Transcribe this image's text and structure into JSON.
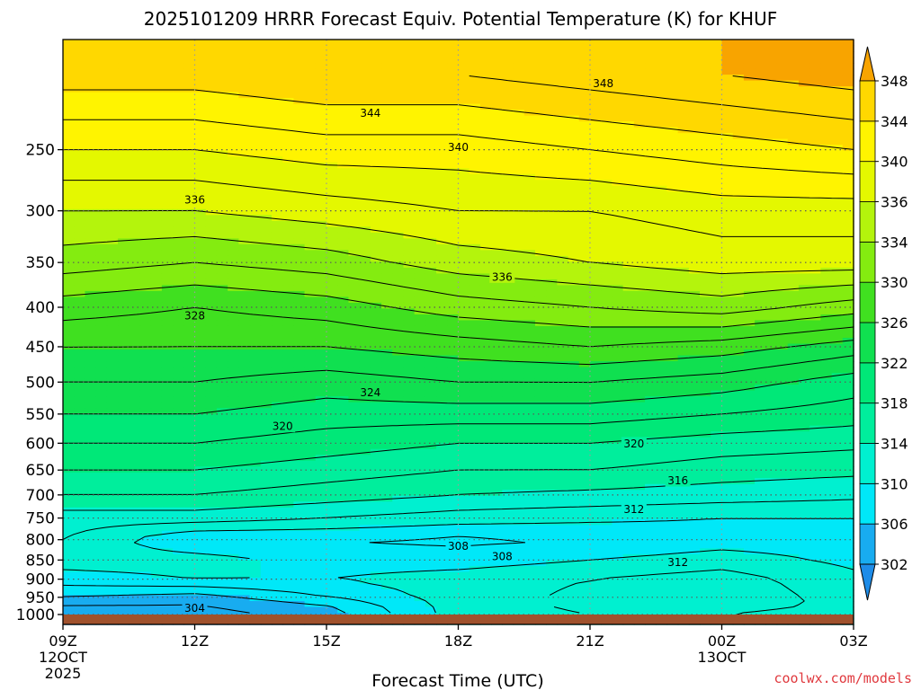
{
  "chart_data": {
    "type": "heatmap",
    "title": "2025101209 HRRR Forecast Equiv. Potential Temperature (K) for KHUF",
    "xlabel": "Forecast Time (UTC)",
    "ylabel": "",
    "x_ticks": [
      {
        "hour": 0,
        "label": "09Z",
        "sub1": "12OCT",
        "sub2": "2025"
      },
      {
        "hour": 3,
        "label": "12Z"
      },
      {
        "hour": 6,
        "label": "15Z"
      },
      {
        "hour": 9,
        "label": "18Z"
      },
      {
        "hour": 12,
        "label": "21Z"
      },
      {
        "hour": 15,
        "label": "00Z",
        "sub1": "13OCT"
      },
      {
        "hour": 18,
        "label": "03Z"
      }
    ],
    "xlim": [
      0,
      18
    ],
    "y_scale": "log",
    "ylim": [
      1030,
      180
    ],
    "y_ticks": [
      250,
      300,
      350,
      400,
      450,
      500,
      550,
      600,
      650,
      700,
      750,
      800,
      850,
      900,
      950,
      1000
    ],
    "grid": true,
    "surface_pressure": 1000,
    "colorbar": {
      "label_levels": [
        302,
        306,
        310,
        314,
        318,
        322,
        326,
        330,
        334,
        336,
        340,
        344,
        348
      ],
      "bands": [
        {
          "from": 298,
          "to": 302,
          "color": "#1e8ce8"
        },
        {
          "from": 302,
          "to": 306,
          "color": "#18acf0"
        },
        {
          "from": 306,
          "to": 310,
          "color": "#00e8f8"
        },
        {
          "from": 310,
          "to": 314,
          "color": "#00f0d0"
        },
        {
          "from": 314,
          "to": 318,
          "color": "#00ee9c"
        },
        {
          "from": 318,
          "to": 322,
          "color": "#00e878"
        },
        {
          "from": 322,
          "to": 326,
          "color": "#10e050"
        },
        {
          "from": 326,
          "to": 330,
          "color": "#40e020"
        },
        {
          "from": 330,
          "to": 334,
          "color": "#84ec10"
        },
        {
          "from": 334,
          "to": 336,
          "color": "#b4f40c"
        },
        {
          "from": 336,
          "to": 340,
          "color": "#e4f800"
        },
        {
          "from": 340,
          "to": 344,
          "color": "#fff400"
        },
        {
          "from": 344,
          "to": 348,
          "color": "#ffd800"
        },
        {
          "from": 348,
          "to": 352,
          "color": "#f8a400"
        }
      ]
    },
    "contour_interval": 2,
    "contour_labels": [
      {
        "value": 348,
        "hour": 12.3,
        "p": 205
      },
      {
        "value": 344,
        "hour": 7.0,
        "p": 224
      },
      {
        "value": 340,
        "hour": 9.0,
        "p": 248
      },
      {
        "value": 336,
        "hour": 3.0,
        "p": 290
      },
      {
        "value": 336,
        "hour": 10.0,
        "p": 365
      },
      {
        "value": 328,
        "hour": 3.0,
        "p": 410
      },
      {
        "value": 324,
        "hour": 7.0,
        "p": 515
      },
      {
        "value": 320,
        "hour": 5.0,
        "p": 570
      },
      {
        "value": 320,
        "hour": 13.0,
        "p": 600
      },
      {
        "value": 316,
        "hour": 14.0,
        "p": 670
      },
      {
        "value": 312,
        "hour": 13.0,
        "p": 730
      },
      {
        "value": 308,
        "hour": 9.0,
        "p": 815
      },
      {
        "value": 308,
        "hour": 10.0,
        "p": 840
      },
      {
        "value": 312,
        "hour": 14.0,
        "p": 855
      },
      {
        "value": 304,
        "hour": 3.0,
        "p": 980
      }
    ],
    "profiles": [
      {
        "hour": 0,
        "p": [
          1000,
          970,
          950,
          900,
          850,
          800,
          750,
          700,
          650,
          600,
          550,
          500,
          450,
          400,
          350,
          300,
          250,
          200
        ],
        "theta": [
          303,
          304,
          306,
          309,
          311,
          312,
          313,
          316,
          318,
          320,
          322,
          324,
          326,
          329,
          333,
          336,
          340,
          345
        ]
      },
      {
        "hour": 3,
        "p": [
          1000,
          970,
          950,
          900,
          850,
          800,
          750,
          700,
          650,
          600,
          550,
          500,
          450,
          400,
          350,
          300,
          250,
          200
        ],
        "theta": [
          303,
          304,
          305,
          310,
          311,
          308,
          313,
          316,
          318,
          320,
          322,
          324,
          326,
          328,
          332,
          336,
          340,
          345
        ]
      },
      {
        "hour": 6,
        "p": [
          1000,
          970,
          950,
          900,
          850,
          800,
          750,
          700,
          650,
          600,
          550,
          500,
          450,
          400,
          350,
          300,
          250,
          200
        ],
        "theta": [
          305,
          306,
          308,
          310,
          309,
          308,
          312,
          315,
          317,
          319,
          321,
          323,
          326,
          329,
          333,
          337,
          341,
          346
        ]
      },
      {
        "hour": 9,
        "p": [
          1000,
          970,
          950,
          900,
          850,
          800,
          750,
          700,
          650,
          600,
          550,
          500,
          450,
          400,
          350,
          300,
          250,
          200
        ],
        "theta": [
          311,
          311,
          311,
          311,
          309,
          307.5,
          311,
          314,
          316,
          318,
          321,
          324,
          327,
          331,
          335,
          338,
          341,
          346
        ]
      },
      {
        "hour": 12,
        "p": [
          1000,
          970,
          950,
          900,
          850,
          800,
          750,
          700,
          650,
          600,
          550,
          500,
          450,
          400,
          350,
          300,
          250,
          200
        ],
        "theta": [
          312,
          312.5,
          312.5,
          312,
          310,
          308,
          310.5,
          313.5,
          316,
          318,
          321,
          324,
          328,
          332,
          336,
          338,
          342,
          347
        ]
      },
      {
        "hour": 15,
        "p": [
          1000,
          970,
          950,
          900,
          850,
          800,
          750,
          700,
          650,
          600,
          550,
          500,
          450,
          400,
          350,
          300,
          250,
          200
        ],
        "theta": [
          312,
          313,
          313.5,
          313,
          311,
          309,
          310,
          313,
          315,
          317,
          320,
          323,
          327,
          333,
          337,
          339,
          343,
          348
        ]
      },
      {
        "hour": 18,
        "p": [
          1000,
          970,
          950,
          900,
          850,
          800,
          750,
          700,
          650,
          600,
          550,
          500,
          450,
          400,
          350,
          300,
          250,
          200
        ],
        "theta": [
          311,
          311.5,
          311,
          310.5,
          309.5,
          309,
          310,
          312.5,
          314.5,
          316.5,
          319,
          321,
          325,
          331,
          337,
          339,
          344,
          349
        ]
      }
    ]
  },
  "watermark": "coolwx.com/models"
}
